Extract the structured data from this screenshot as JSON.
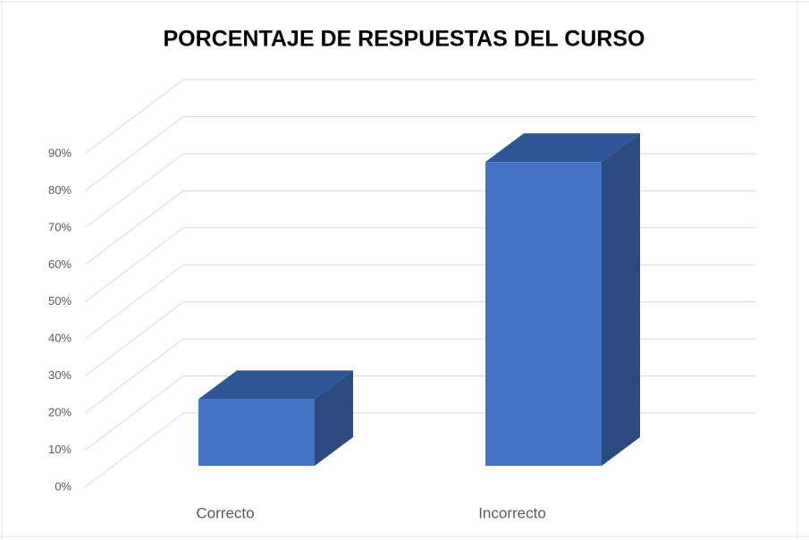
{
  "chart_data": {
    "type": "bar3d",
    "title": "PORCENTAJE  DE RESPUESTAS  DEL CURSO",
    "categories": [
      "Correcto",
      "Incorrecto"
    ],
    "values": [
      18,
      82
    ],
    "color": "#4472c4",
    "ylim": [
      0,
      90
    ],
    "yticks": [
      {
        "value": 0,
        "label": "0%"
      },
      {
        "value": 10,
        "label": "10%"
      },
      {
        "value": 20,
        "label": "20%"
      },
      {
        "value": 30,
        "label": "30%"
      },
      {
        "value": 40,
        "label": "40%"
      },
      {
        "value": 50,
        "label": "50%"
      },
      {
        "value": 60,
        "label": "60%"
      },
      {
        "value": 70,
        "label": "70%"
      },
      {
        "value": 80,
        "label": "80%"
      },
      {
        "value": 90,
        "label": "90%"
      }
    ],
    "grid": true
  }
}
